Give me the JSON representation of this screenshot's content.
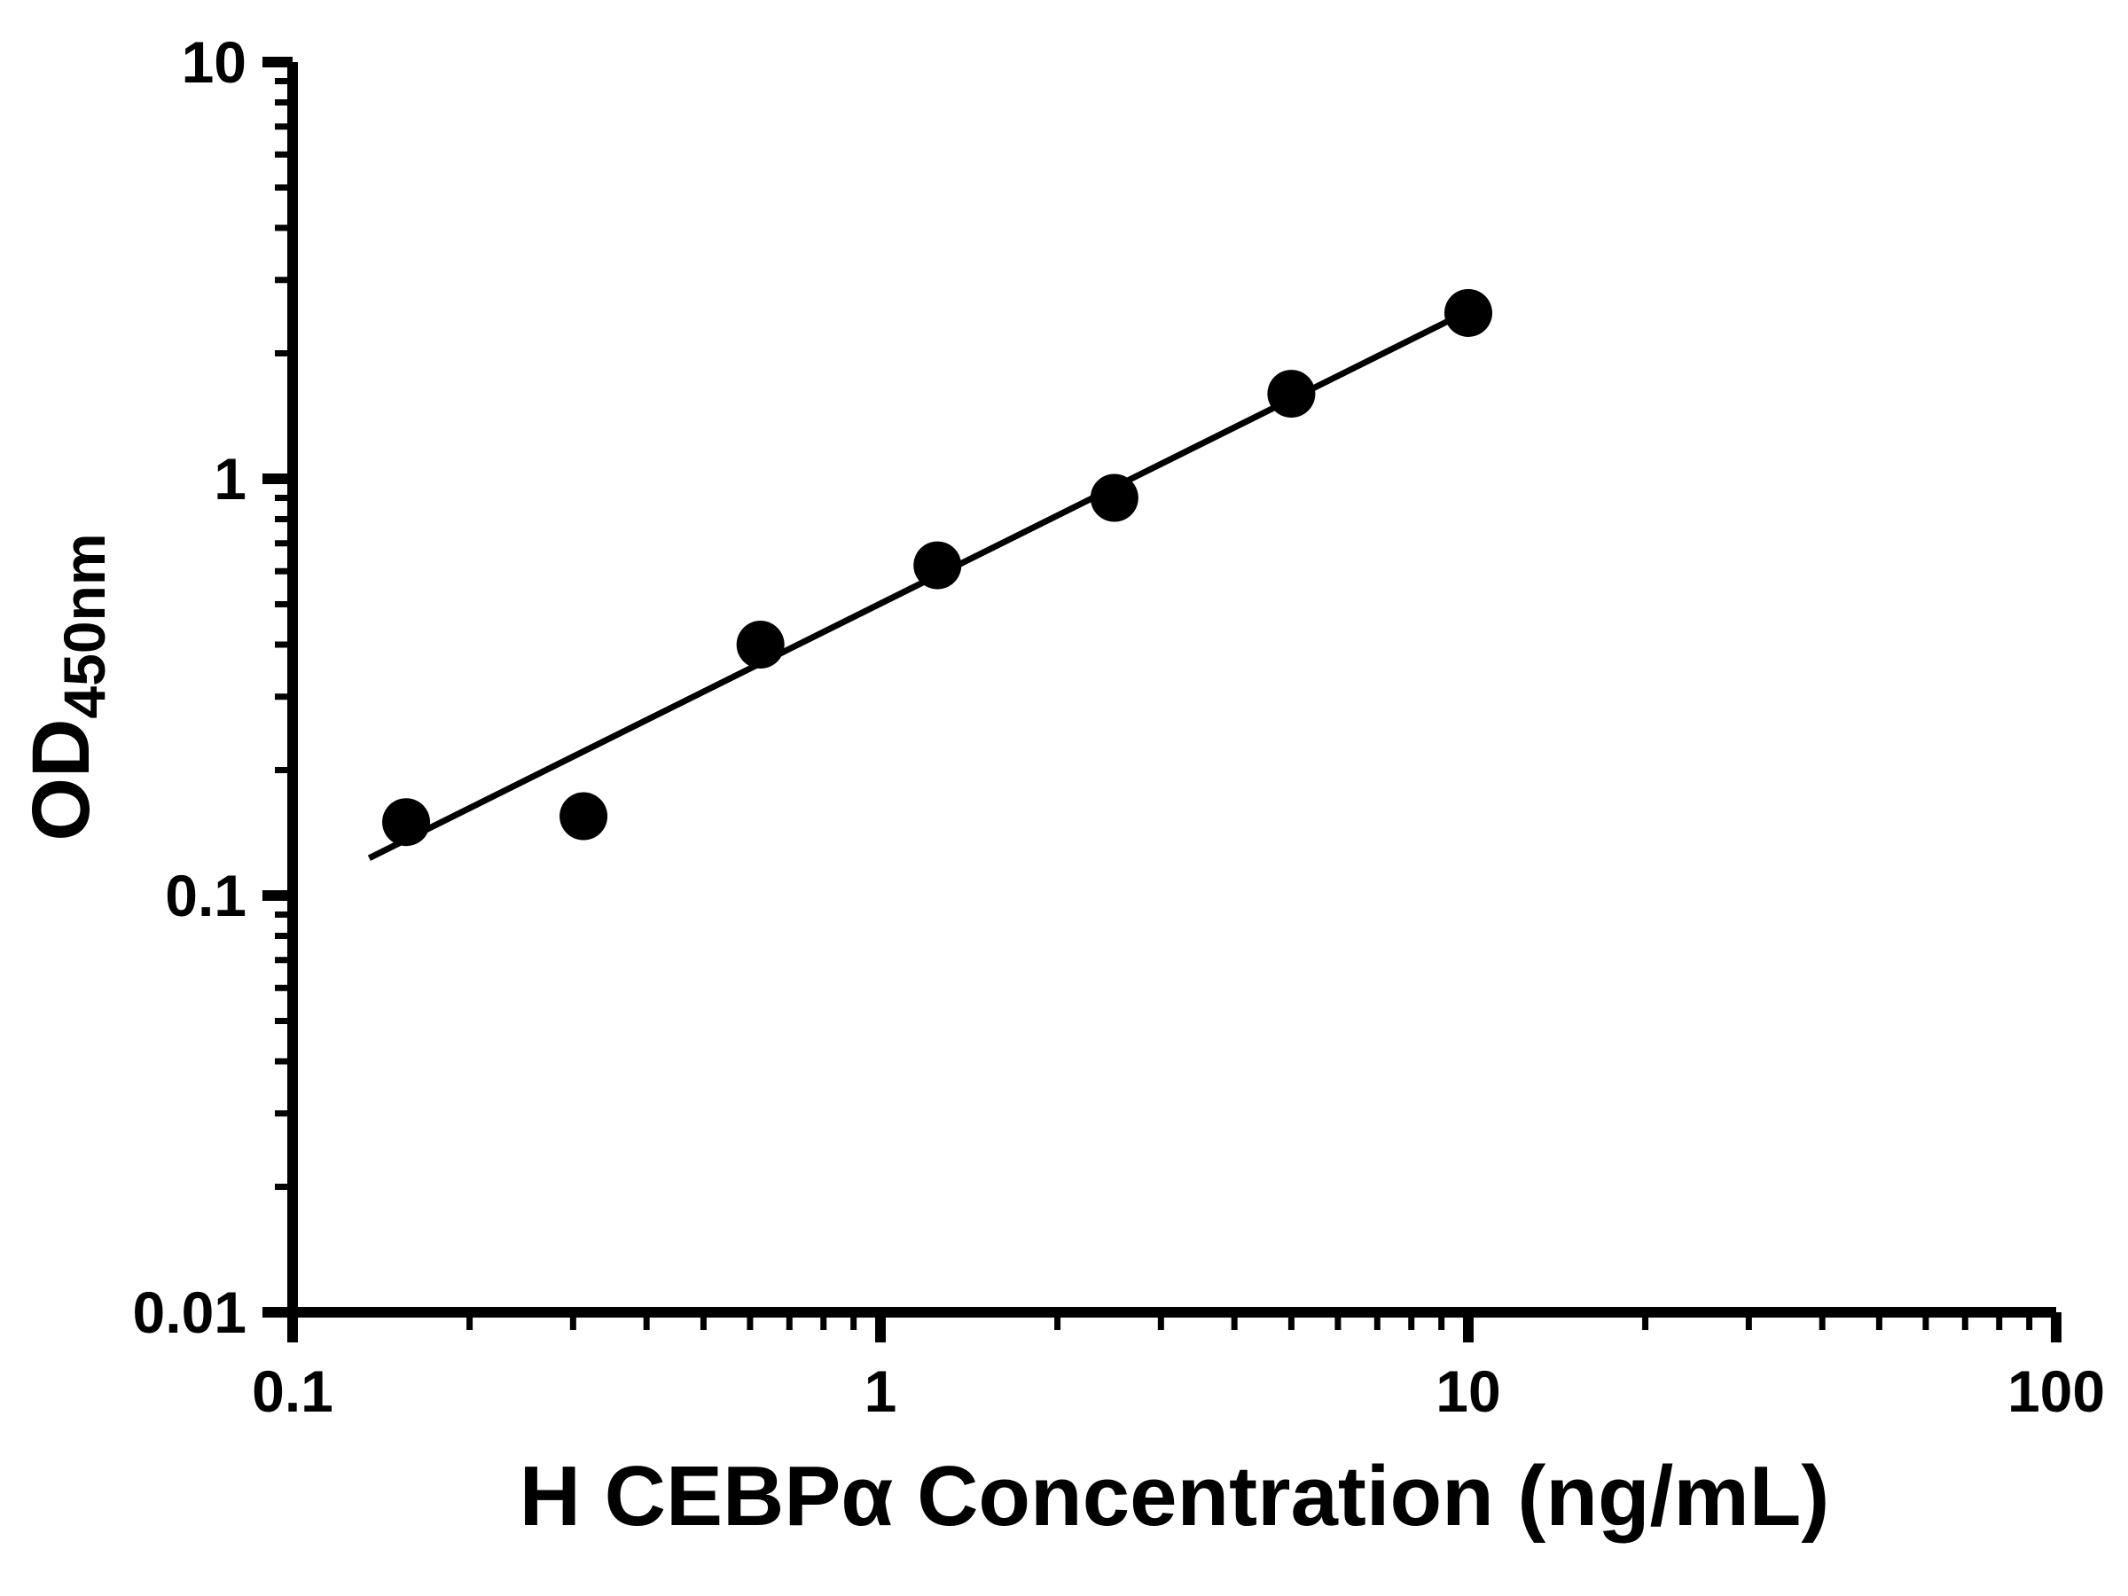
{
  "chart_data": {
    "type": "scatter",
    "title": "",
    "xlabel": "H CEBPα Concentration (ng/mL)",
    "ylabel_main": "OD",
    "ylabel_sub": "450nm",
    "x_scale": "log",
    "y_scale": "log",
    "xlim": [
      0.1,
      100
    ],
    "ylim": [
      0.01,
      10
    ],
    "grid": false,
    "legend": false,
    "x_ticks": [
      {
        "value": 0.1,
        "label": "0.1"
      },
      {
        "value": 1,
        "label": "1"
      },
      {
        "value": 10,
        "label": "10"
      },
      {
        "value": 100,
        "label": "100"
      }
    ],
    "y_ticks": [
      {
        "value": 0.01,
        "label": "0.01"
      },
      {
        "value": 0.1,
        "label": "0.1"
      },
      {
        "value": 1,
        "label": "1"
      },
      {
        "value": 10,
        "label": "10"
      }
    ],
    "points": {
      "x": [
        0.156,
        0.3125,
        0.625,
        1.25,
        2.5,
        5,
        10
      ],
      "y": [
        0.15,
        0.155,
        0.4,
        0.62,
        0.9,
        1.6,
        2.5
      ]
    },
    "trend_line": {
      "x": [
        0.135,
        10.3
      ],
      "y": [
        0.123,
        2.58
      ]
    },
    "marker_color": "#000000",
    "line_color": "#000000",
    "axis_color": "#000000",
    "background_color": "#ffffff"
  }
}
